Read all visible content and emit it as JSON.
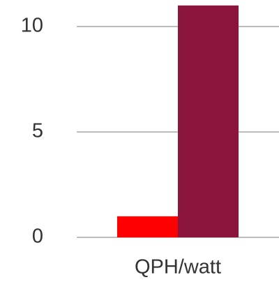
{
  "chart_data": {
    "type": "bar",
    "categories": [
      "QPH/watt"
    ],
    "series": [
      {
        "color": "#ff0000",
        "values": [
          1
        ]
      },
      {
        "color": "#8b143c",
        "values": [
          11
        ]
      }
    ],
    "ylim": [
      0,
      11.2
    ],
    "yticks": [
      0,
      5,
      10
    ],
    "grid": true
  }
}
